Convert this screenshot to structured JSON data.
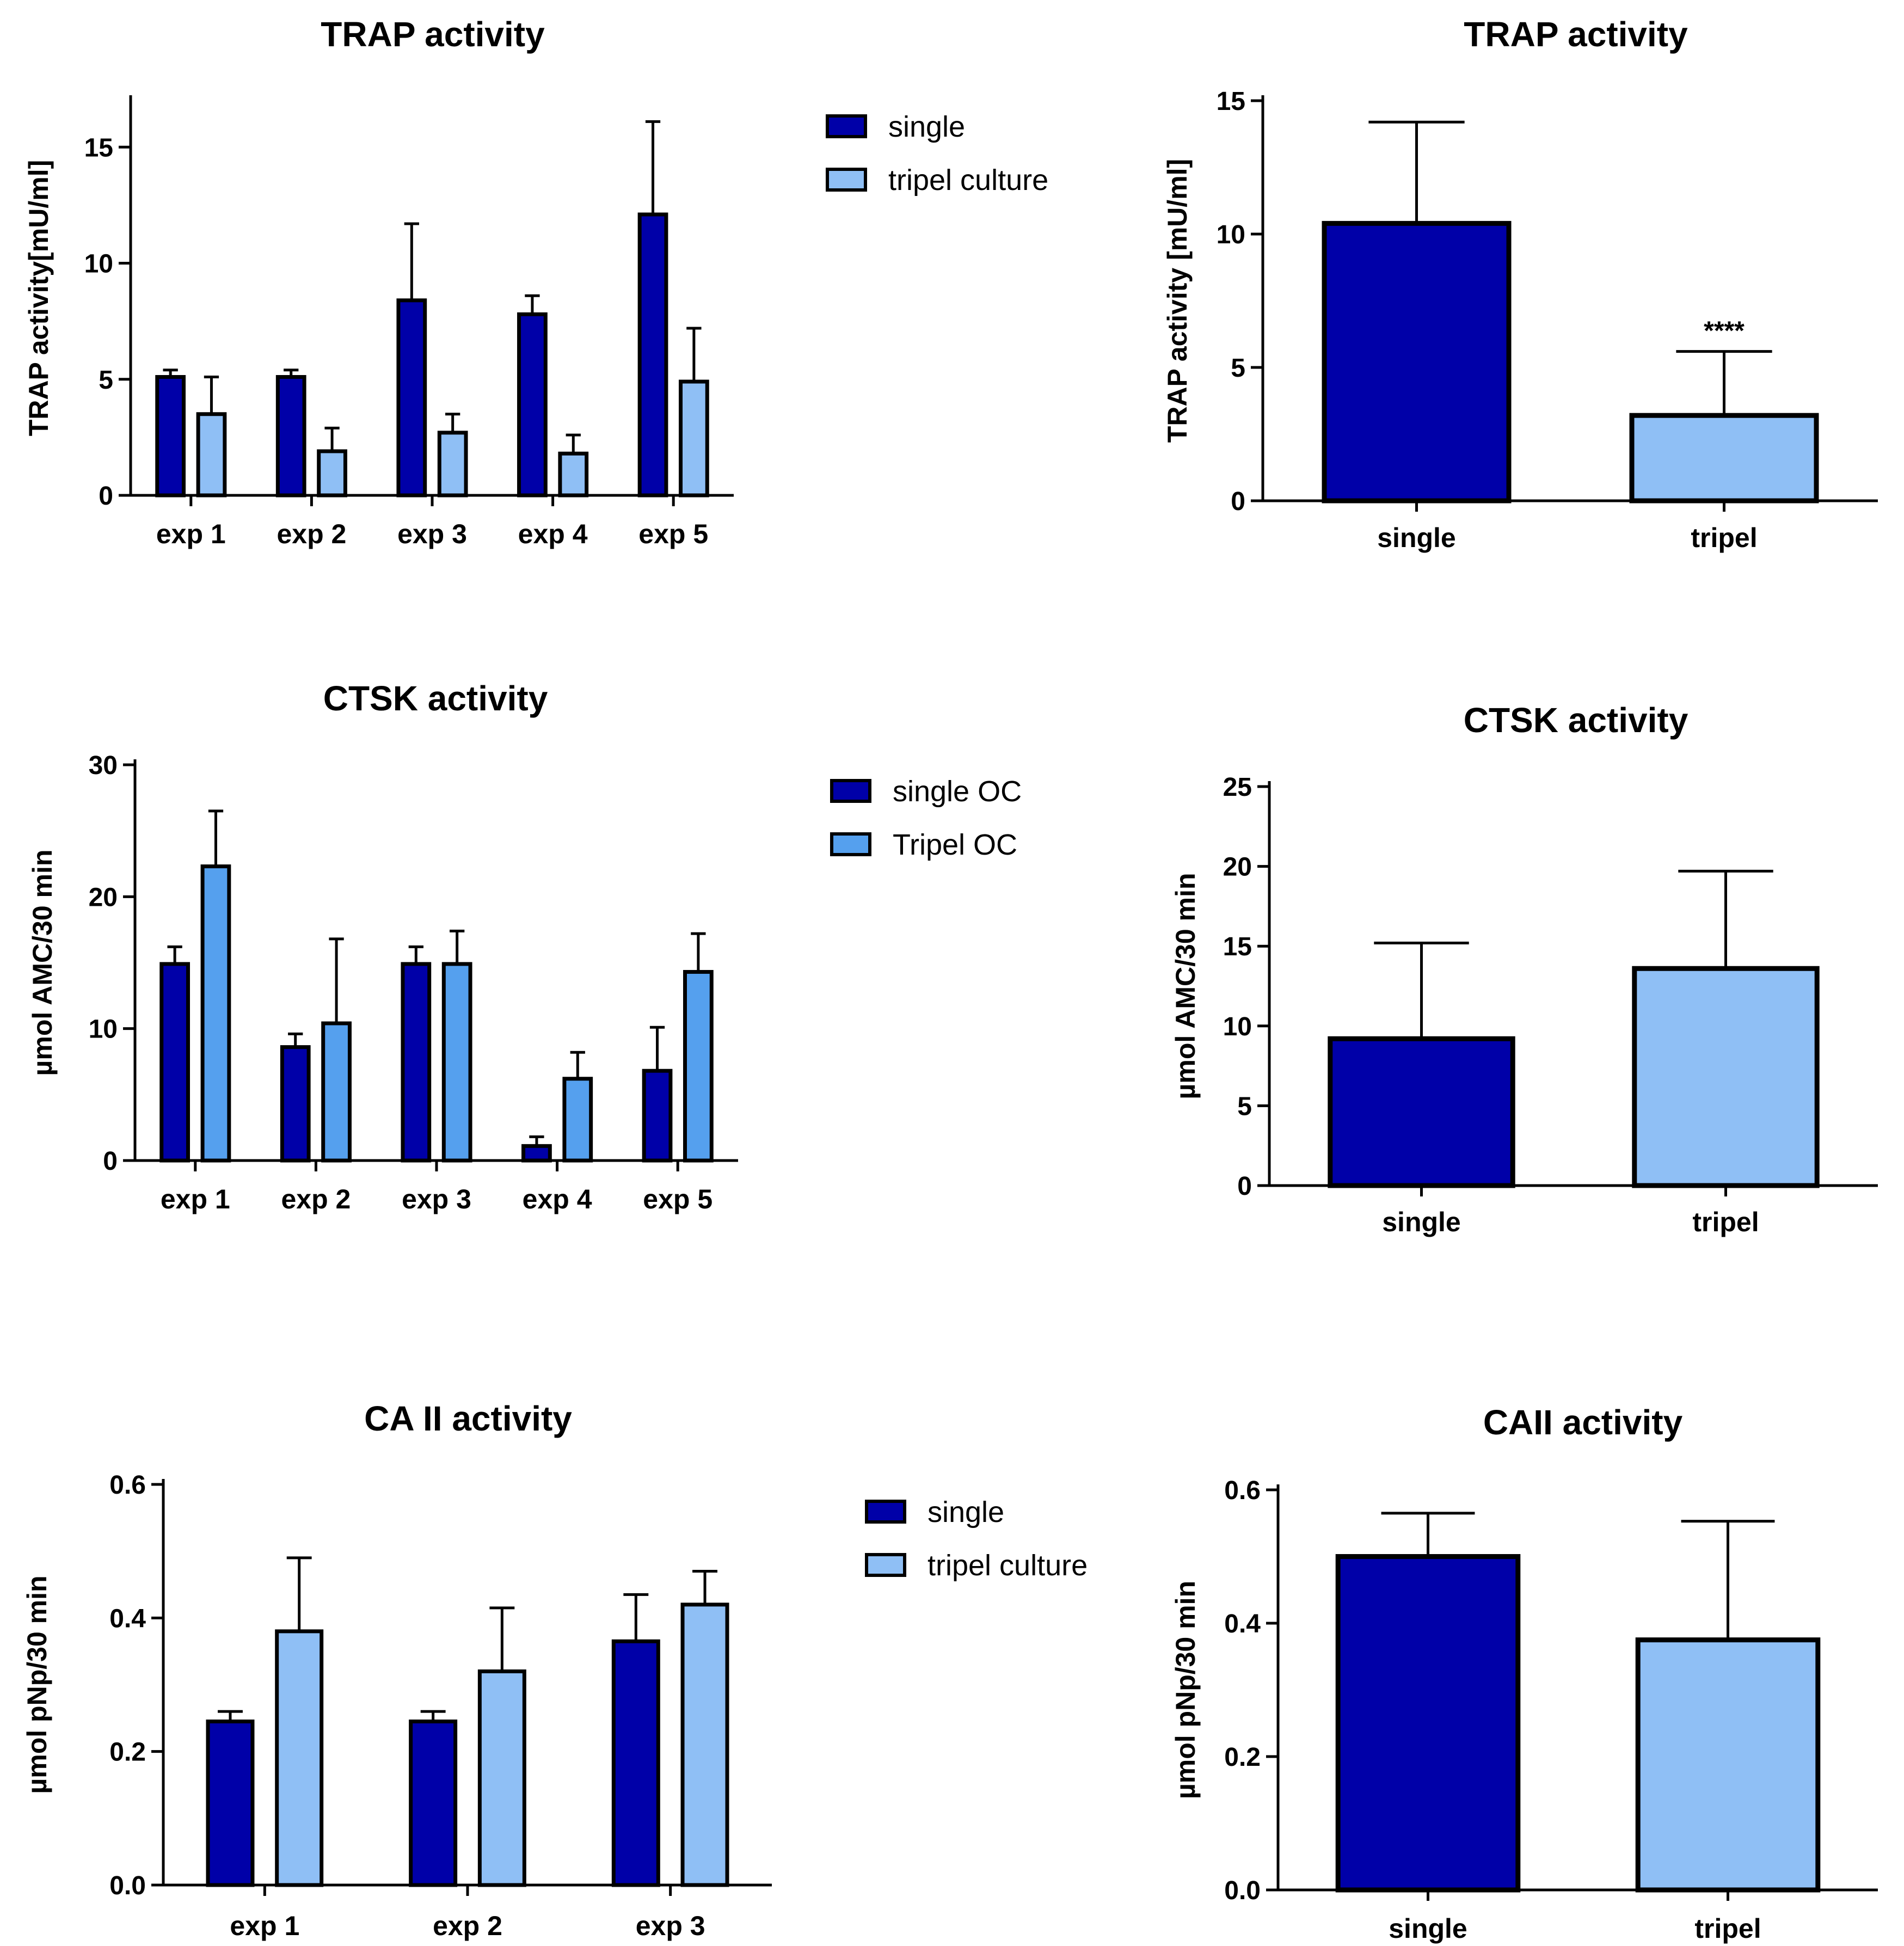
{
  "colors": {
    "dark": "#0000a8",
    "light": "#8fbff5",
    "mid": "#55a0ee",
    "outline": "#000000"
  },
  "chart_data": [
    {
      "id": "trap-exp",
      "type": "bar",
      "title": "TRAP activity",
      "xlabel": "",
      "ylabel": "TRAP activity[mU/ml]",
      "ylim": [
        0,
        17
      ],
      "yticks": [
        0,
        5,
        10,
        15
      ],
      "categories": [
        "exp 1",
        "exp 2",
        "exp 3",
        "exp 4",
        "exp 5"
      ],
      "series": [
        {
          "name": "single",
          "color": "dark",
          "values": [
            5.1,
            5.1,
            8.4,
            7.8,
            12.1
          ],
          "errors": [
            0.3,
            0.3,
            3.3,
            0.8,
            4.0
          ]
        },
        {
          "name": "tripel culture",
          "color": "light",
          "values": [
            3.5,
            1.9,
            2.7,
            1.8,
            4.9
          ],
          "errors": [
            1.6,
            1.0,
            0.8,
            0.8,
            2.3
          ]
        }
      ],
      "legend": [
        "single",
        "tripel culture"
      ]
    },
    {
      "id": "trap-sum",
      "type": "bar",
      "title": "TRAP activity",
      "xlabel": "",
      "ylabel": "TRAP activity [mU/ml]",
      "ylim": [
        0,
        15
      ],
      "yticks": [
        0,
        5,
        10,
        15
      ],
      "categories": [
        "single",
        "tripel"
      ],
      "values": [
        10.4,
        3.2
      ],
      "errors": [
        3.8,
        2.4
      ],
      "colors": [
        "dark",
        "light"
      ],
      "annotations": [
        {
          "category": "tripel",
          "text": "****"
        }
      ]
    },
    {
      "id": "ctsk-exp",
      "type": "bar",
      "title": "CTSK activity",
      "xlabel": "",
      "ylabel": "µmol AMC/30 min",
      "ylim": [
        0,
        30
      ],
      "yticks": [
        0,
        10,
        20,
        30
      ],
      "categories": [
        "exp 1",
        "exp 2",
        "exp 3",
        "exp 4",
        "exp 5"
      ],
      "series": [
        {
          "name": "single OC",
          "color": "dark",
          "values": [
            14.9,
            8.6,
            14.9,
            1.1,
            6.8
          ],
          "errors": [
            1.3,
            1.0,
            1.3,
            0.7,
            3.3
          ]
        },
        {
          "name": "Tripel OC",
          "color": "mid",
          "values": [
            22.3,
            10.4,
            14.9,
            6.2,
            14.3
          ],
          "errors": [
            4.2,
            6.4,
            2.5,
            2.0,
            2.9
          ]
        }
      ],
      "legend": [
        "single OC",
        "Tripel OC"
      ]
    },
    {
      "id": "ctsk-sum",
      "type": "bar",
      "title": "CTSK activity",
      "xlabel": "",
      "ylabel": "µmol AMC/30 min",
      "ylim": [
        0,
        25
      ],
      "yticks": [
        0,
        5,
        10,
        15,
        20,
        25
      ],
      "categories": [
        "single",
        "tripel"
      ],
      "values": [
        9.2,
        13.6
      ],
      "errors": [
        6.0,
        6.1
      ],
      "colors": [
        "dark",
        "light"
      ],
      "annotations": []
    },
    {
      "id": "ca2-exp",
      "type": "bar",
      "title": "CA II activity",
      "xlabel": "",
      "ylabel": "µmol pNp/30 min",
      "ylim": [
        0,
        0.6
      ],
      "yticks": [
        0.0,
        0.2,
        0.4,
        0.6
      ],
      "tickDecimals": 1,
      "categories": [
        "exp 1",
        "exp 2",
        "exp 3"
      ],
      "series": [
        {
          "name": "single",
          "color": "dark",
          "values": [
            0.245,
            0.245,
            0.365
          ],
          "errors": [
            0.015,
            0.015,
            0.07
          ]
        },
        {
          "name": "tripel culture",
          "color": "light",
          "values": [
            0.38,
            0.32,
            0.42
          ],
          "errors": [
            0.11,
            0.095,
            0.05
          ]
        }
      ],
      "legend": [
        "single",
        "tripel culture"
      ]
    },
    {
      "id": "ca2-sum",
      "type": "bar",
      "title": "CAII activity",
      "xlabel": "",
      "ylabel": "µmol pNp/30 min",
      "ylim": [
        0,
        0.6
      ],
      "yticks": [
        0.0,
        0.2,
        0.4,
        0.6
      ],
      "tickDecimals": 1,
      "categories": [
        "single",
        "tripel"
      ],
      "values": [
        0.5,
        0.375
      ],
      "errors": [
        0.065,
        0.178
      ],
      "colors": [
        "dark",
        "light"
      ],
      "annotations": []
    }
  ]
}
